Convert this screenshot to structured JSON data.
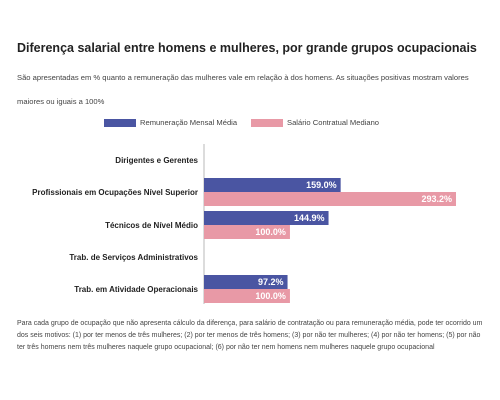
{
  "chart_data": {
    "type": "bar",
    "orientation": "horizontal",
    "title": "Diferença salarial entre homens e mulheres, por grande grupos ocupacionais",
    "subtitle": "São apresentadas em % quanto a remuneração das mulheres vale em relação à dos homens. As situações positivas mostram valores maiores ou iguais a 100%",
    "categories": [
      "Dirigentes e Gerentes",
      "Profissionais em Ocupações Nível Superior",
      "Técnicos de Nível Médio",
      "Trab. de Serviços Administrativos",
      "Trab. em Atividade Operacionais"
    ],
    "series": [
      {
        "name": "Remuneração Mensal Média",
        "color": "#4a55a2",
        "values": [
          null,
          159.0,
          144.9,
          null,
          97.2
        ],
        "labels": [
          "",
          "159.0%",
          "144.9%",
          "",
          "97.2%"
        ]
      },
      {
        "name": "Salário Contratual Mediano",
        "color": "#e899a6",
        "values": [
          null,
          293.2,
          100.0,
          null,
          100.0
        ],
        "labels": [
          "",
          "293.2%",
          "100.0%",
          "",
          "100.0%"
        ]
      }
    ],
    "xlim": [
      0,
      293.2
    ],
    "legend_position": "top",
    "grid": false,
    "footnote": "Para cada grupo de ocupação que não apresenta cálculo da diferença, para salário de contratação ou para remuneração média, pode ter ocorrido um dos seis motivos: (1) por ter menos de três mulheres; (2) por ter menos de três homens; (3) por não ter mulheres; (4) por não ter homens; (5) por não ter três homens nem três mulheres naquele grupo ocupacional; (6) por não ter nem homens nem mulheres naquele grupo ocupacional"
  }
}
